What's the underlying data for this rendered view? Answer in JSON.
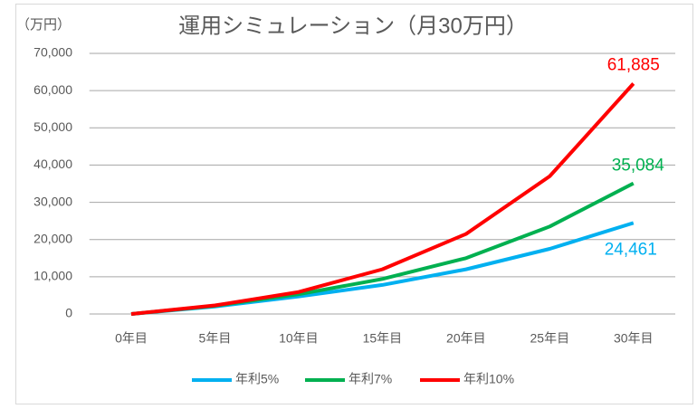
{
  "chart_data": {
    "type": "line",
    "title": "運用シミュレーション（月30万円）",
    "y_label": "（万円）",
    "categories": [
      "0年目",
      "5年目",
      "10年目",
      "15年目",
      "20年目",
      "25年目",
      "30年目"
    ],
    "series": [
      {
        "name": "年利5%",
        "color": "#00b0f0",
        "values": [
          0,
          2000,
          4700,
          7800,
          12000,
          17500,
          24461
        ],
        "value_labels": [
          null,
          null,
          null,
          null,
          null,
          null,
          "24,461"
        ]
      },
      {
        "name": "年利7%",
        "color": "#00b050",
        "values": [
          0,
          2200,
          5300,
          9400,
          15000,
          23500,
          35084
        ],
        "value_labels": [
          null,
          null,
          null,
          null,
          null,
          null,
          "35,084"
        ]
      },
      {
        "name": "年利10%",
        "color": "#ff0000",
        "values": [
          0,
          2300,
          5900,
          12000,
          21500,
          37000,
          61885
        ],
        "value_labels": [
          null,
          null,
          null,
          null,
          null,
          null,
          "61,885"
        ]
      }
    ],
    "ylim": [
      0,
      70000
    ],
    "yticks": [
      0,
      {
        "value": 10000,
        "label": "10,000"
      },
      {
        "value": 20000,
        "label": "20,000"
      },
      {
        "value": 30000,
        "label": "30,000"
      },
      {
        "value": 40000,
        "label": "40,000"
      },
      {
        "value": 50000,
        "label": "50,000"
      },
      {
        "value": 60000,
        "label": "60,000"
      },
      {
        "value": 70000,
        "label": "70,000"
      }
    ],
    "grid": true,
    "legend": "bottom"
  }
}
